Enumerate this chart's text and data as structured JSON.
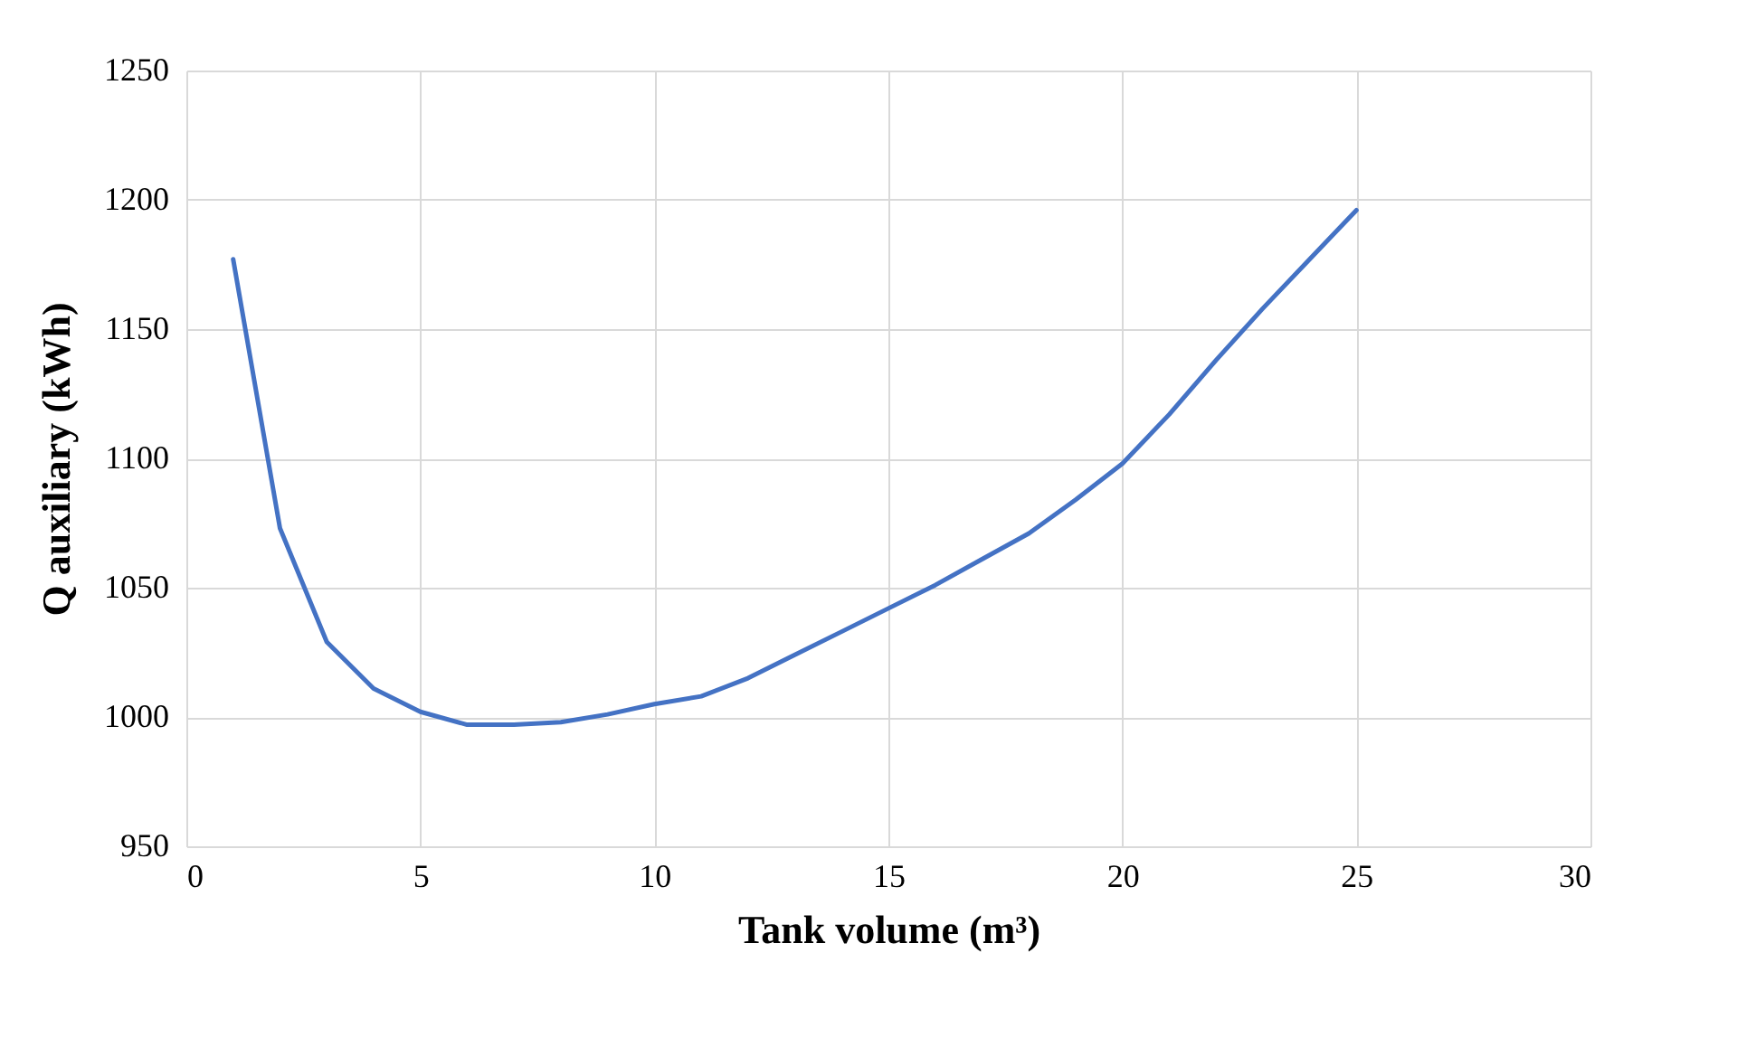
{
  "chart_data": {
    "type": "line",
    "xlabel": "Tank volume (m³)",
    "ylabel": "Q auxiliary (kWh)",
    "x": [
      1,
      2,
      3,
      4,
      5,
      6,
      7,
      8,
      9,
      10,
      11,
      12,
      13,
      14,
      15,
      16,
      17,
      18,
      19,
      20,
      21,
      22,
      23,
      24,
      25
    ],
    "series": [
      {
        "color": "#4472c4",
        "values": [
          1177,
          1073,
          1029,
          1011,
          1002,
          997,
          997,
          998,
          1001,
          1005,
          1008,
          1015,
          1024,
          1033,
          1042,
          1051,
          1061,
          1071,
          1084,
          1098,
          1117,
          1138,
          1158,
          1177,
          1196
        ]
      }
    ],
    "xlim": [
      0,
      30
    ],
    "xticks": [
      0,
      5,
      10,
      15,
      20,
      25,
      30
    ],
    "ylim": [
      950,
      1250
    ],
    "yticks": [
      950,
      1000,
      1050,
      1100,
      1150,
      1200,
      1250
    ],
    "grid": true,
    "marker": "none",
    "line_style": "solid"
  }
}
